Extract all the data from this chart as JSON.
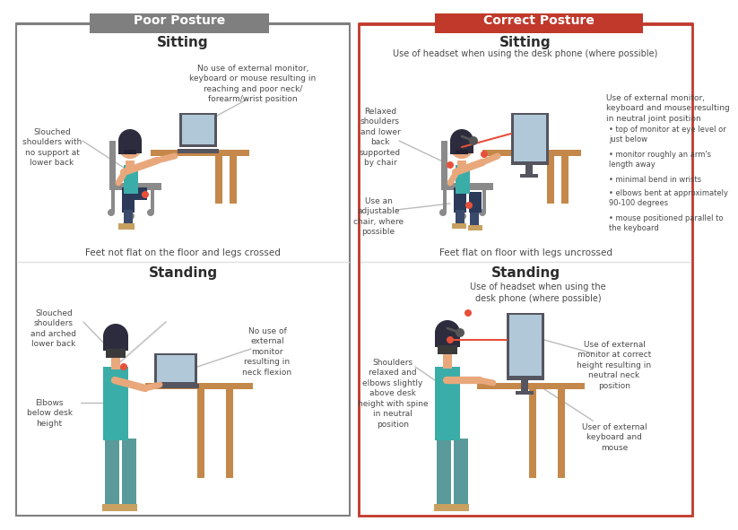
{
  "bg_color": "#ffffff",
  "poor_border_color": "#7f7f7f",
  "correct_border_color": "#c0392b",
  "poor_header_color": "#7f7f7f",
  "correct_header_color": "#c0392b",
  "poor_header_text": "Poor Posture",
  "correct_header_text": "Correct Posture",
  "poor_sitting_title": "Sitting",
  "correct_sitting_title": "Sitting",
  "poor_standing_title": "Standing",
  "correct_standing_title": "Standing",
  "poor_sitting_right_text": "No use of external monitor,\nkeyboard or mouse resulting in\nreaching and poor neck/\nforearm/wrist position",
  "poor_sitting_left_text": "Slouched\nshoulders with\nno support at\nlower back",
  "poor_sitting_bottom_text": "Feet not flat on the floor and legs crossed",
  "correct_sitting_top_text": "Use of headset when using the desk phone (where possible)",
  "correct_sitting_left1_text": "Relaxed\nshoulders\nand lower\nback\nsupported\nby chair",
  "correct_sitting_left2_text": "Use an\nadjustable\nchair, where\npossible",
  "correct_sitting_right_main": "Use of external monitor,\nkeyboard and mouse resulting\nin neutral joint position",
  "correct_sitting_bullets": [
    "top of monitor at eye level or\njust below",
    "monitor roughly an arm's\nlength away",
    "minimal bend in wrists",
    "elbows bent at approximately\n90-100 degrees",
    "mouse positioned parallel to\nthe keyboard"
  ],
  "correct_sitting_bottom_text": "Feet flat on floor with legs uncrossed",
  "poor_standing_left1_text": "Slouched\nshoulders\nand arched\nlower back",
  "poor_standing_left2_text": "Elbows\nbelow desk\nheight",
  "poor_standing_right_text": "No use of\nexternal\nmonitor\nresulting in\nneck flexion",
  "correct_standing_top_text": "Use of headset when using the\ndesk phone (where possible)",
  "correct_standing_left_text": "Shoulders\nrelaxed and\nelbows slightly\nabove desk\nheight with spine\nin neutral\nposition",
  "correct_standing_right1_text": "Use of external\nmonitor at correct\nheight resulting in\nneutral neck\nposition",
  "correct_standing_right2_text": "User of external\nkeyboard and\nmouse",
  "accent_red": "#e8503a",
  "line_red": "#e8503a",
  "text_dark": "#2c2c2c",
  "text_gray": "#4a4a4a",
  "skin_color": "#e8a87c",
  "hair_dark": "#2c2c3e",
  "desk_brown": "#c4884a",
  "desk_leg": "#b87840",
  "chair_gray": "#8a8a8a",
  "chair_dark": "#6a6a6a",
  "shirt_teal": "#3aada8",
  "pants_dark": "#2c3a5a",
  "shoe_brown": "#c8a060",
  "man_shirt": "#3aada8",
  "man_pants": "#5a9a9a",
  "woman_hair": "#2c2c3e",
  "monitor_dark": "#555560",
  "monitor_screen": "#b0c8d8",
  "divider_color": "#e0e0e0"
}
